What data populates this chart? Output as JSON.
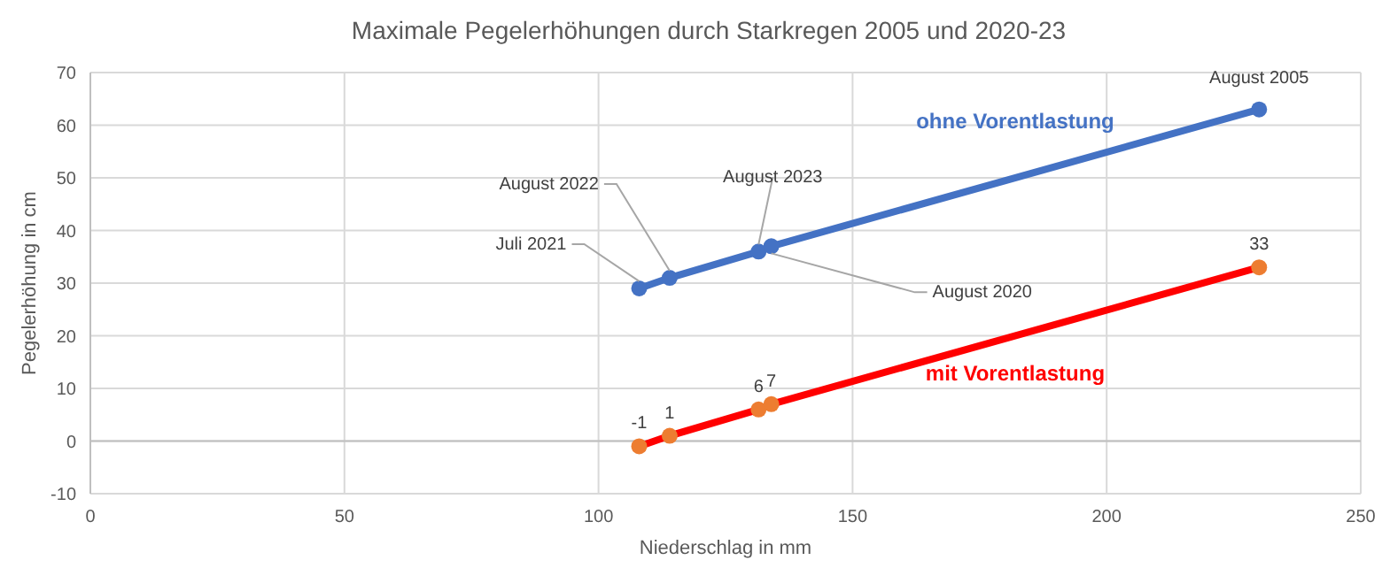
{
  "chart_data": {
    "type": "line",
    "title": "Maximale Pegelerhöhungen durch Starkregen 2005 und 2020-23",
    "xlabel": "Niederschlag in mm",
    "ylabel": "Pegelerhöhung in cm",
    "xlim": [
      0,
      250
    ],
    "xticks": [
      0,
      50,
      100,
      150,
      200,
      250
    ],
    "ylim": [
      -10,
      70
    ],
    "yticks": [
      -10,
      0,
      10,
      20,
      30,
      40,
      50,
      60,
      70
    ],
    "grid": true,
    "marker": "circle",
    "series": [
      {
        "name": "ohne Vorentlastung",
        "color": "#4472c4",
        "x": [
          108,
          114,
          131.5,
          134,
          230
        ],
        "values": [
          29,
          31,
          36,
          37,
          63
        ]
      },
      {
        "name": "mit Vorentlastung",
        "color": "#ff0000",
        "colors": [
          "#ed7d31",
          "#ed7d31",
          "#ed7d31",
          "#ed7d31",
          "#ed7d31"
        ],
        "x": [
          108,
          114,
          131.5,
          134,
          230
        ],
        "values": [
          -1,
          1,
          6,
          7,
          33
        ],
        "value_labels": [
          "-1",
          "1",
          "6",
          "7",
          "33"
        ]
      }
    ],
    "annotations": [
      {
        "text": "Juli 2021",
        "x": 108,
        "y": 29
      },
      {
        "text": "August 2022",
        "x": 114,
        "y": 31
      },
      {
        "text": "August 2023",
        "x": 131.5,
        "y": 36
      },
      {
        "text": "August 2020",
        "x": 134,
        "y": 37
      },
      {
        "text": "August 2005",
        "x": 230,
        "y": 63
      }
    ]
  }
}
